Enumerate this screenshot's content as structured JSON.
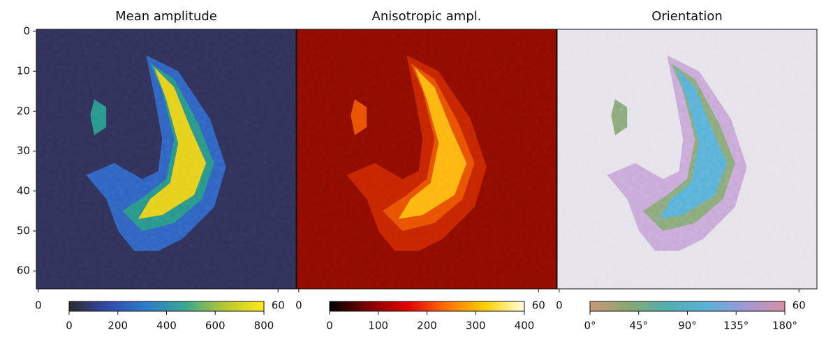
{
  "chart_data": [
    {
      "type": "image",
      "title": "Mean amplitude",
      "xlim": [
        -0.5,
        64.5
      ],
      "ylim": [
        64.5,
        -0.5
      ],
      "xticks": [
        0,
        60
      ],
      "yticks": [
        0,
        10,
        20,
        30,
        40,
        50,
        60
      ],
      "colors": {
        "background": "#2f3158",
        "edge": "#2f62c0",
        "fill": "#2a9488",
        "core": "#e6cf1e"
      },
      "colorbar": {
        "colors": [
          "#2b2b2b",
          "#3448b0",
          "#2a7ec8",
          "#3aa890",
          "#b8c830",
          "#ffe81a"
        ],
        "lim": [
          0,
          800
        ],
        "ticks": [
          0,
          200,
          400,
          600,
          800
        ]
      }
    },
    {
      "type": "image",
      "title": "Anisotropic ampl.",
      "xlim": [
        -0.5,
        64.5
      ],
      "ylim": [
        64.5,
        -0.5
      ],
      "xticks": [
        0,
        60
      ],
      "colors": {
        "background": "#8c0c00",
        "edge": "#c42400",
        "fill": "#e85000",
        "core": "#ffb410"
      },
      "colorbar": {
        "colors": [
          "#000000",
          "#800000",
          "#e00000",
          "#ff7000",
          "#ffd000",
          "#ffffe0"
        ],
        "lim": [
          0,
          400
        ],
        "ticks": [
          0,
          100,
          200,
          300,
          400
        ]
      }
    },
    {
      "type": "image",
      "title": "Orientation",
      "xlim": [
        -0.5,
        64.5
      ],
      "ylim": [
        64.5,
        -0.5
      ],
      "xticks": [
        0,
        60
      ],
      "colors": {
        "background": "#e6e2ea",
        "edge": "#c8a8d8",
        "fill": "#88a878",
        "core": "#58b0d8"
      },
      "colorbar": {
        "colors": [
          "#c8987a",
          "#88a870",
          "#50b0b0",
          "#5ab0d8",
          "#a098d8",
          "#d890a0"
        ],
        "lim": [
          0,
          180
        ],
        "ticks": [
          {
            "value": 0,
            "label": "0°"
          },
          {
            "value": 45,
            "label": "45°"
          },
          {
            "value": 90,
            "label": "90°"
          },
          {
            "value": 135,
            "label": "135°"
          },
          {
            "value": 180,
            "label": "180°"
          }
        ]
      }
    }
  ]
}
